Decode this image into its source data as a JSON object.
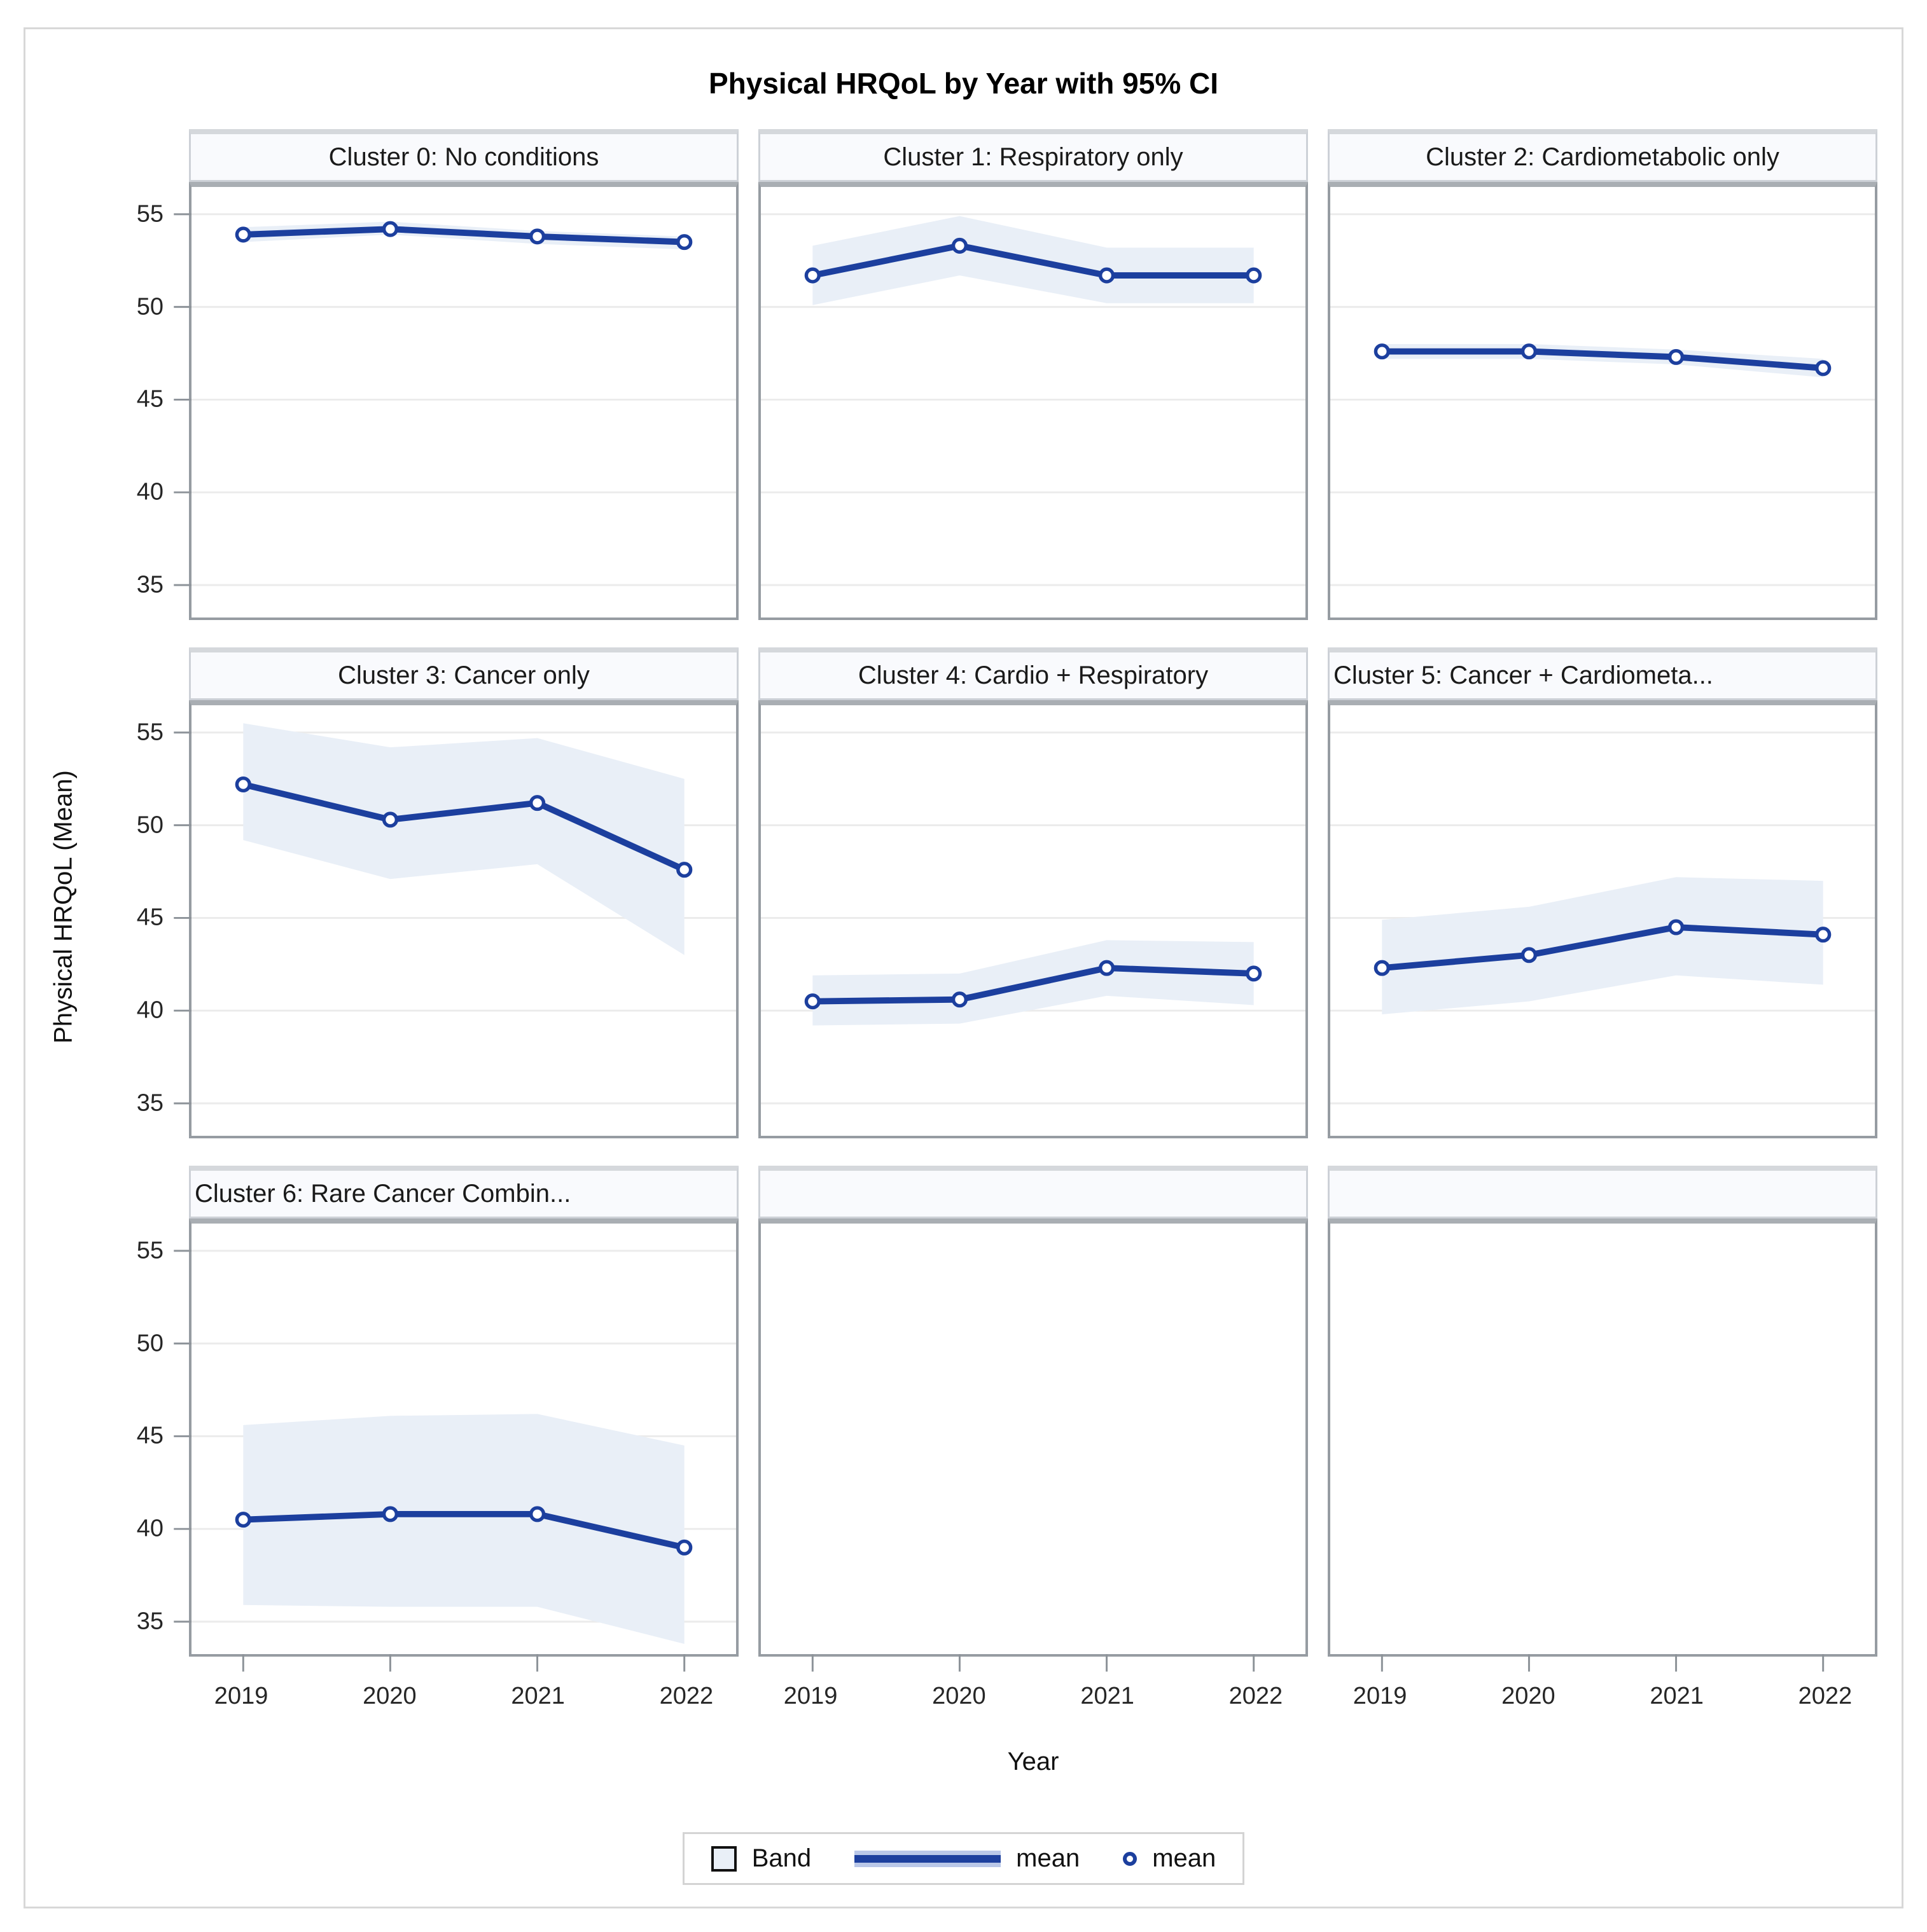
{
  "title": "Physical HRQoL by Year with 95% CI",
  "y_axis": {
    "label": "Physical HRQoL (Mean)",
    "ticks": [
      "55",
      "50",
      "45",
      "40",
      "35"
    ],
    "range": [
      33.25,
      56.47
    ]
  },
  "x_axis": {
    "label": "Year",
    "categories": [
      "2019",
      "2020",
      "2021",
      "2022"
    ]
  },
  "legend": {
    "items": [
      {
        "type": "band",
        "label": "Band"
      },
      {
        "type": "line",
        "label": "mean"
      },
      {
        "type": "marker",
        "label": "mean"
      }
    ],
    "position": "bottom-center"
  },
  "colors": {
    "line": "#1c3f9e",
    "marker_fill": "#ffffff",
    "band": "#e9eff7",
    "grid": "#ebebeb",
    "tick": "#8d9399",
    "panel_border": "#969ca2",
    "header_bg": "#f9fafd",
    "outer_border": "#d8d8d8"
  },
  "grid_shape": {
    "rows": 3,
    "cols": 3,
    "filled_panels": 7
  },
  "chart_data": [
    {
      "type": "line",
      "title": "Cluster 0: No conditions",
      "x": [
        "2019",
        "2020",
        "2021",
        "2022"
      ],
      "series": [
        {
          "name": "mean",
          "values": [
            53.9,
            54.2,
            53.8,
            53.5
          ]
        },
        {
          "name": "ci_lower",
          "values": [
            53.5,
            53.9,
            53.4,
            53.1
          ]
        },
        {
          "name": "ci_upper",
          "values": [
            54.3,
            54.6,
            54.1,
            53.8
          ]
        }
      ]
    },
    {
      "type": "line",
      "title": "Cluster 1: Respiratory only",
      "x": [
        "2019",
        "2020",
        "2021",
        "2022"
      ],
      "series": [
        {
          "name": "mean",
          "values": [
            51.7,
            53.3,
            51.7,
            51.7
          ]
        },
        {
          "name": "ci_lower",
          "values": [
            50.1,
            51.7,
            50.2,
            50.2
          ]
        },
        {
          "name": "ci_upper",
          "values": [
            53.3,
            54.9,
            53.2,
            53.2
          ]
        }
      ]
    },
    {
      "type": "line",
      "title": "Cluster 2: Cardiometabolic only",
      "x": [
        "2019",
        "2020",
        "2021",
        "2022"
      ],
      "series": [
        {
          "name": "mean",
          "values": [
            47.6,
            47.6,
            47.3,
            46.7
          ]
        },
        {
          "name": "ci_lower",
          "values": [
            47.2,
            47.2,
            46.9,
            46.2
          ]
        },
        {
          "name": "ci_upper",
          "values": [
            48.0,
            48.0,
            47.7,
            47.2
          ]
        }
      ]
    },
    {
      "type": "line",
      "title": "Cluster 3: Cancer only",
      "x": [
        "2019",
        "2020",
        "2021",
        "2022"
      ],
      "series": [
        {
          "name": "mean",
          "values": [
            52.2,
            50.3,
            51.2,
            47.6
          ]
        },
        {
          "name": "ci_lower",
          "values": [
            49.2,
            47.1,
            47.9,
            43.0
          ]
        },
        {
          "name": "ci_upper",
          "values": [
            55.5,
            54.2,
            54.7,
            52.5
          ]
        }
      ]
    },
    {
      "type": "line",
      "title": "Cluster 4: Cardio + Respiratory",
      "x": [
        "2019",
        "2020",
        "2021",
        "2022"
      ],
      "series": [
        {
          "name": "mean",
          "values": [
            40.5,
            40.6,
            42.3,
            42.0
          ]
        },
        {
          "name": "ci_lower",
          "values": [
            39.2,
            39.3,
            40.8,
            40.3
          ]
        },
        {
          "name": "ci_upper",
          "values": [
            41.9,
            42.0,
            43.8,
            43.7
          ]
        }
      ]
    },
    {
      "type": "line",
      "title": "Cluster 5: Cancer + Cardiometa...",
      "x": [
        "2019",
        "2020",
        "2021",
        "2022"
      ],
      "series": [
        {
          "name": "mean",
          "values": [
            42.3,
            43.0,
            44.5,
            44.1
          ]
        },
        {
          "name": "ci_lower",
          "values": [
            39.8,
            40.5,
            41.9,
            41.4
          ]
        },
        {
          "name": "ci_upper",
          "values": [
            44.9,
            45.6,
            47.2,
            47.0
          ]
        }
      ]
    },
    {
      "type": "line",
      "title": "Cluster 6: Rare Cancer Combin...",
      "x": [
        "2019",
        "2020",
        "2021",
        "2022"
      ],
      "series": [
        {
          "name": "mean",
          "values": [
            40.5,
            40.8,
            40.8,
            39.0
          ]
        },
        {
          "name": "ci_lower",
          "values": [
            35.9,
            35.8,
            35.8,
            33.8
          ]
        },
        {
          "name": "ci_upper",
          "values": [
            45.6,
            46.1,
            46.2,
            44.5
          ]
        }
      ]
    }
  ]
}
